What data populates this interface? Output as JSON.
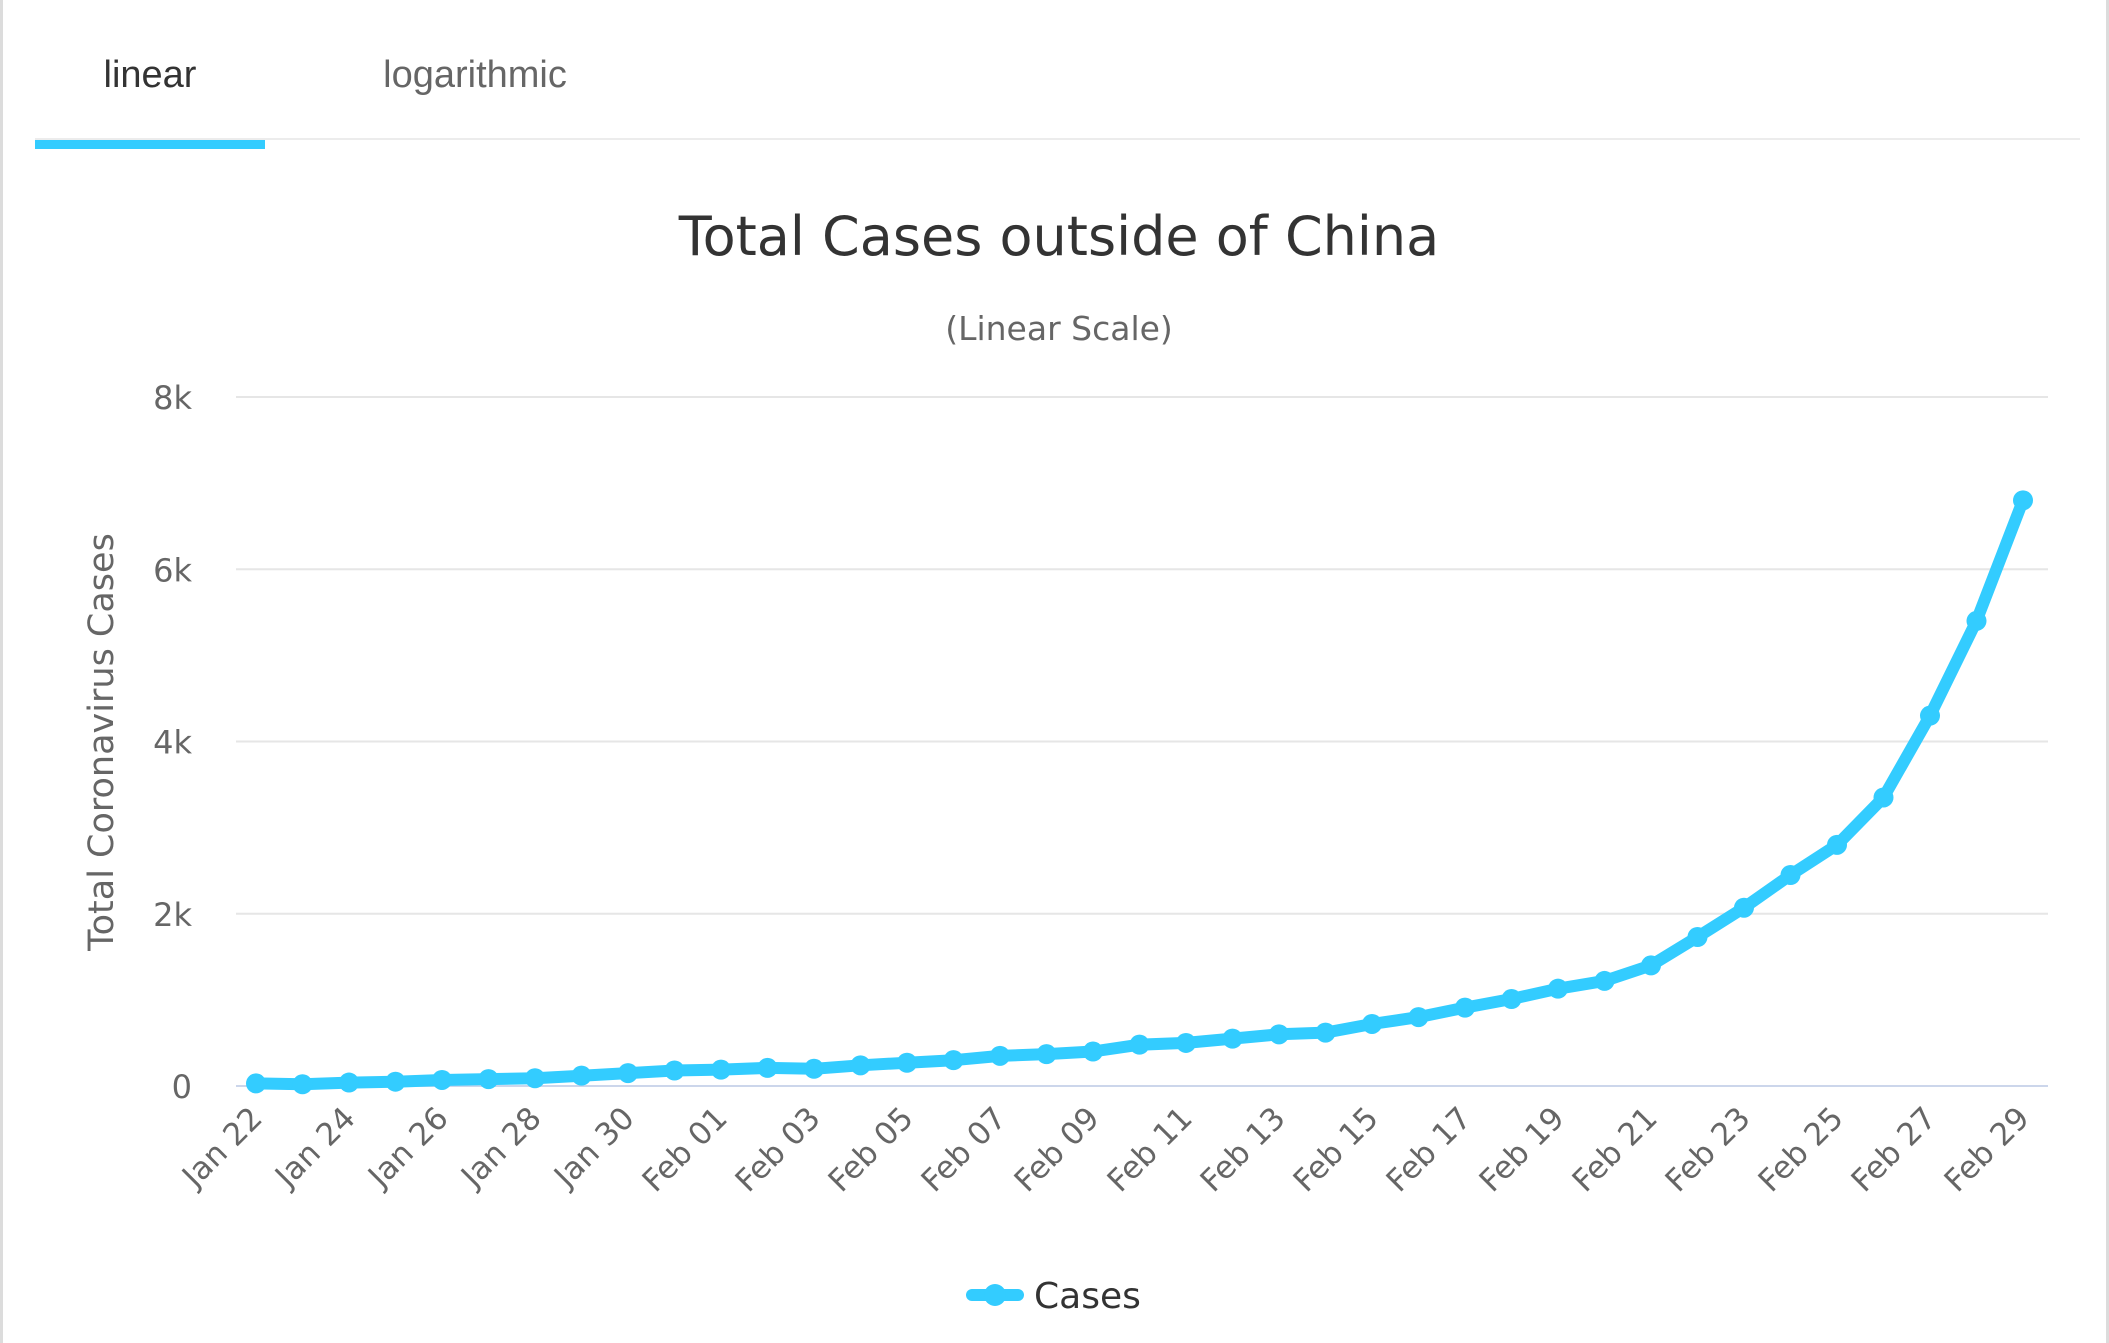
{
  "tabs": {
    "linear": "linear",
    "logarithmic": "logarithmic"
  },
  "colors": {
    "accent": "#33ccff",
    "grid": "#e6e6e6",
    "text": "#333333",
    "muted": "#666666"
  },
  "chart_data": {
    "type": "line",
    "title": "Total Cases outside of China",
    "subtitle": "(Linear Scale)",
    "ylabel": "Total Coronavirus Cases",
    "xlabel": "",
    "ylim": [
      0,
      8000
    ],
    "yticks": [
      0,
      2000,
      4000,
      6000,
      8000
    ],
    "ytick_labels": [
      "0",
      "2k",
      "4k",
      "6k",
      "8k"
    ],
    "grid": true,
    "legend_position": "bottom-center",
    "x": [
      "Jan 22",
      "Jan 23",
      "Jan 24",
      "Jan 25",
      "Jan 26",
      "Jan 27",
      "Jan 28",
      "Jan 29",
      "Jan 30",
      "Jan 31",
      "Feb 01",
      "Feb 02",
      "Feb 03",
      "Feb 04",
      "Feb 05",
      "Feb 06",
      "Feb 07",
      "Feb 08",
      "Feb 09",
      "Feb 10",
      "Feb 11",
      "Feb 12",
      "Feb 13",
      "Feb 14",
      "Feb 15",
      "Feb 16",
      "Feb 17",
      "Feb 18",
      "Feb 19",
      "Feb 20",
      "Feb 21",
      "Feb 22",
      "Feb 23",
      "Feb 24",
      "Feb 25",
      "Feb 26",
      "Feb 27",
      "Feb 28",
      "Feb 29"
    ],
    "x_tick_labels": [
      "Jan 22",
      "Jan 24",
      "Jan 26",
      "Jan 28",
      "Jan 30",
      "Feb 01",
      "Feb 03",
      "Feb 05",
      "Feb 07",
      "Feb 09",
      "Feb 11",
      "Feb 13",
      "Feb 15",
      "Feb 17",
      "Feb 19",
      "Feb 21",
      "Feb 23",
      "Feb 25",
      "Feb 27",
      "Feb 29"
    ],
    "series": [
      {
        "name": "Cases",
        "values": [
          30,
          20,
          40,
          50,
          70,
          80,
          90,
          120,
          150,
          180,
          190,
          210,
          200,
          240,
          270,
          300,
          350,
          370,
          400,
          480,
          500,
          550,
          600,
          620,
          720,
          800,
          910,
          1010,
          1130,
          1220,
          1400,
          1730,
          2070,
          2450,
          2800,
          3350,
          4300,
          5400,
          6800
        ]
      }
    ]
  }
}
